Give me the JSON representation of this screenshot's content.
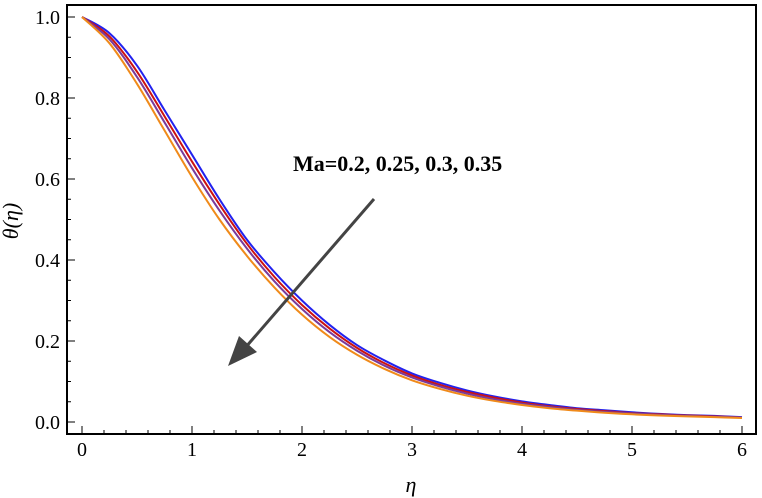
{
  "chart_data": {
    "type": "line",
    "xlabel": "η",
    "ylabel": "θ(η)",
    "xlim": [
      0,
      6
    ],
    "ylim": [
      0,
      1
    ],
    "x_ticks": [
      "0",
      "1",
      "2",
      "3",
      "4",
      "5",
      "6"
    ],
    "y_ticks": [
      "0.0",
      "0.2",
      "0.4",
      "0.6",
      "0.8",
      "1.0"
    ],
    "grid": false,
    "annotation": "Ma=0.2, 0.25, 0.3, 0.35",
    "x": [
      0,
      0.25,
      0.5,
      0.75,
      1,
      1.25,
      1.5,
      1.75,
      2,
      2.25,
      2.5,
      2.75,
      3,
      3.25,
      3.5,
      3.75,
      4,
      4.25,
      4.5,
      4.75,
      5,
      5.25,
      5.5,
      5.75,
      6
    ],
    "series": [
      {
        "color": "#2222ee",
        "values": [
          1.0,
          0.96,
          0.88,
          0.77,
          0.66,
          0.55,
          0.45,
          0.37,
          0.3,
          0.24,
          0.19,
          0.152,
          0.12,
          0.097,
          0.078,
          0.063,
          0.051,
          0.042,
          0.034,
          0.029,
          0.024,
          0.02,
          0.017,
          0.015,
          0.012
        ]
      },
      {
        "color": "#cc1111",
        "values": [
          1.0,
          0.952,
          0.865,
          0.755,
          0.643,
          0.537,
          0.44,
          0.358,
          0.289,
          0.231,
          0.183,
          0.145,
          0.115,
          0.092,
          0.074,
          0.06,
          0.048,
          0.039,
          0.032,
          0.027,
          0.022,
          0.019,
          0.016,
          0.014,
          0.011
        ]
      },
      {
        "color": "#7a3a9a",
        "values": [
          1.0,
          0.945,
          0.852,
          0.74,
          0.627,
          0.522,
          0.428,
          0.347,
          0.279,
          0.222,
          0.176,
          0.139,
          0.11,
          0.088,
          0.07,
          0.056,
          0.045,
          0.037,
          0.03,
          0.025,
          0.021,
          0.018,
          0.015,
          0.013,
          0.011
        ]
      },
      {
        "color": "#f08a1a",
        "values": [
          1.0,
          0.935,
          0.835,
          0.72,
          0.605,
          0.5,
          0.41,
          0.332,
          0.265,
          0.21,
          0.166,
          0.131,
          0.103,
          0.082,
          0.065,
          0.052,
          0.042,
          0.034,
          0.028,
          0.023,
          0.019,
          0.016,
          0.014,
          0.012,
          0.01
        ]
      }
    ]
  }
}
